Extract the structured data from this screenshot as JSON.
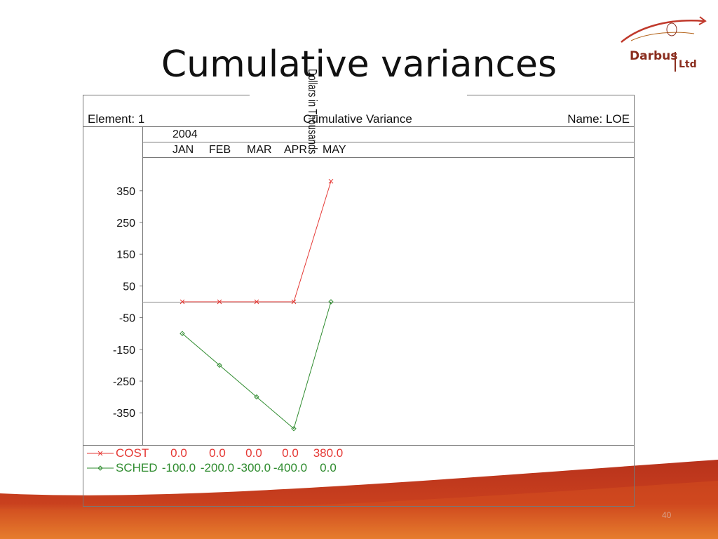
{
  "slide": {
    "title": "Cumulative variances",
    "page_number": "40"
  },
  "logo": {
    "name": "Darbus",
    "suffix": "Ltd",
    "colors": {
      "text": "#8a2d1e",
      "swoosh": "#c0392b"
    }
  },
  "colors": {
    "cost": "#e53935",
    "sched": "#2e8b2e",
    "wave_dark": "#a8281a",
    "wave_light": "#f2a03a"
  },
  "chart_data": {
    "type": "line",
    "header": {
      "left": "Element: 1",
      "center": "Cumulative Variance",
      "right": "Name: LOE"
    },
    "year_label": "2004",
    "categories": [
      "JAN",
      "FEB",
      "MAR",
      "APR",
      "MAY"
    ],
    "ylabel": "Dollars in Thousands",
    "ylim": [
      -450,
      450
    ],
    "yticks": [
      350,
      250,
      150,
      50,
      -50,
      -150,
      -250,
      -350
    ],
    "grid": false,
    "zero_line": true,
    "legend_placement": "bottom",
    "series": [
      {
        "name": "COST",
        "marker": "x",
        "values": [
          0.0,
          0.0,
          0.0,
          0.0,
          380.0
        ],
        "labels": [
          "0.0",
          "0.0",
          "0.0",
          "0.0",
          "380.0"
        ]
      },
      {
        "name": "SCHED",
        "marker": "diamond",
        "values": [
          -100.0,
          -200.0,
          -300.0,
          -400.0,
          0.0
        ],
        "labels": [
          "-100.0",
          "-200.0",
          "-300.0",
          "-400.0",
          "0.0"
        ]
      }
    ]
  }
}
